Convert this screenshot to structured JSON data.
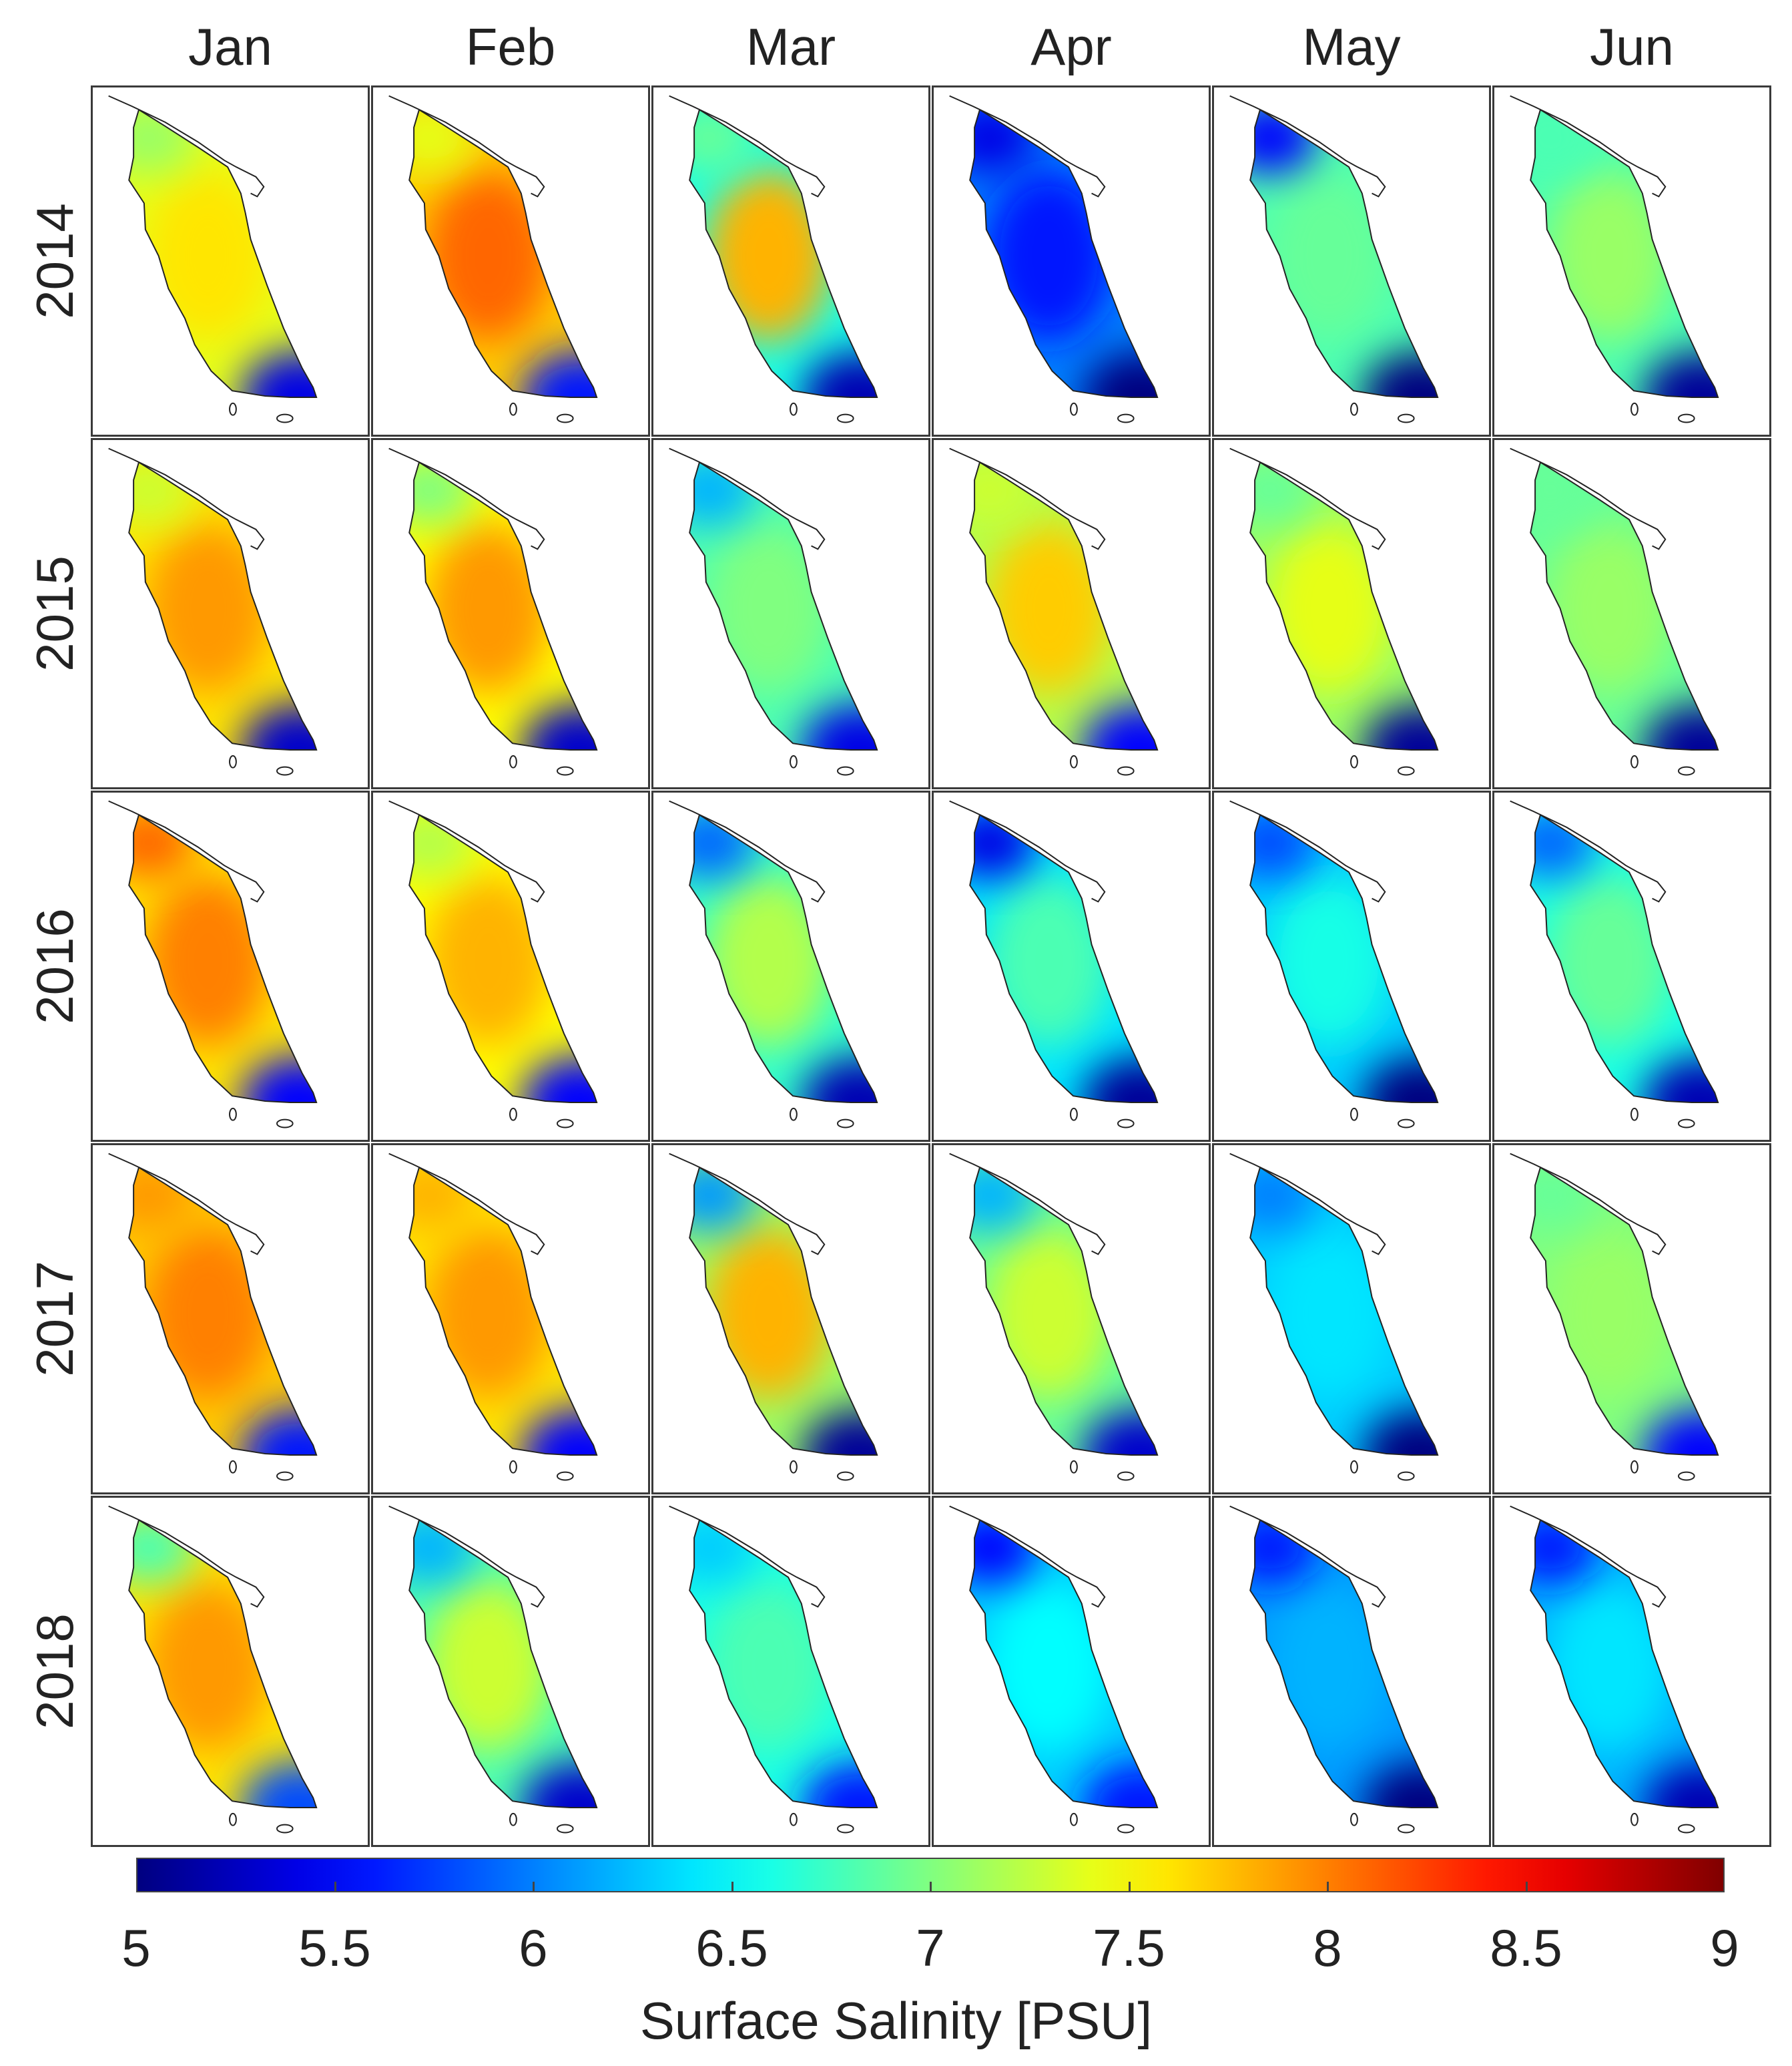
{
  "chart_data": {
    "type": "heatmap",
    "title": "",
    "columns": [
      "Jan",
      "Feb",
      "Mar",
      "Apr",
      "May",
      "Jun"
    ],
    "rows": [
      "2014",
      "2015",
      "2016",
      "2017",
      "2018"
    ],
    "panels": [
      [
        {
          "center": 7.6,
          "north": 7.1,
          "south": 5.4,
          "coast": 7.4
        },
        {
          "center": 8.1,
          "north": 7.4,
          "south": 5.6,
          "coast": 7.7
        },
        {
          "center": 7.8,
          "north": 6.9,
          "south": 5.2,
          "coast": 6.6
        },
        {
          "center": 5.6,
          "north": 5.4,
          "south": 5.0,
          "coast": 6.0
        },
        {
          "center": 6.9,
          "north": 5.5,
          "south": 5.0,
          "coast": 6.8
        },
        {
          "center": 7.1,
          "north": 6.8,
          "south": 5.1,
          "coast": 6.8
        }
      ],
      [
        {
          "center": 7.9,
          "north": 7.3,
          "south": 5.3,
          "coast": 7.6
        },
        {
          "center": 7.9,
          "north": 7.0,
          "south": 5.3,
          "coast": 7.5
        },
        {
          "center": 7.0,
          "north": 6.2,
          "south": 5.4,
          "coast": 6.8
        },
        {
          "center": 7.7,
          "north": 7.3,
          "south": 5.5,
          "coast": 7.2
        },
        {
          "center": 7.4,
          "north": 6.9,
          "south": 5.1,
          "coast": 7.1
        },
        {
          "center": 7.1,
          "north": 6.9,
          "south": 5.1,
          "coast": 6.9
        }
      ],
      [
        {
          "center": 8.0,
          "north": 8.1,
          "south": 5.5,
          "coast": 7.6
        },
        {
          "center": 7.8,
          "north": 7.2,
          "south": 5.5,
          "coast": 7.5
        },
        {
          "center": 7.2,
          "north": 5.9,
          "south": 5.2,
          "coast": 6.7
        },
        {
          "center": 6.8,
          "north": 5.4,
          "south": 5.1,
          "coast": 6.4
        },
        {
          "center": 6.6,
          "north": 5.8,
          "south": 5.0,
          "coast": 6.3
        },
        {
          "center": 6.9,
          "north": 5.9,
          "south": 5.2,
          "coast": 6.6
        }
      ],
      [
        {
          "center": 8.0,
          "north": 7.9,
          "south": 5.6,
          "coast": 7.7
        },
        {
          "center": 7.9,
          "north": 7.8,
          "south": 5.5,
          "coast": 7.6
        },
        {
          "center": 7.8,
          "north": 6.1,
          "south": 5.1,
          "coast": 7.1
        },
        {
          "center": 7.3,
          "north": 6.2,
          "south": 5.3,
          "coast": 6.9
        },
        {
          "center": 6.4,
          "north": 6.0,
          "south": 5.0,
          "coast": 6.3
        },
        {
          "center": 7.1,
          "north": 6.9,
          "south": 5.5,
          "coast": 7.0
        }
      ],
      [
        {
          "center": 7.9,
          "north": 6.8,
          "south": 5.8,
          "coast": 7.6
        },
        {
          "center": 7.3,
          "north": 6.2,
          "south": 5.3,
          "coast": 6.8
        },
        {
          "center": 6.8,
          "north": 6.3,
          "south": 5.6,
          "coast": 6.6
        },
        {
          "center": 6.5,
          "north": 5.5,
          "south": 5.6,
          "coast": 6.3
        },
        {
          "center": 6.2,
          "north": 5.6,
          "south": 5.0,
          "coast": 6.1
        },
        {
          "center": 6.4,
          "north": 5.6,
          "south": 5.2,
          "coast": 6.2
        }
      ]
    ],
    "colorbar": {
      "label": "Surface Salinity [PSU]",
      "range": [
        5,
        9
      ],
      "ticks": [
        "5",
        "5.5",
        "6",
        "6.5",
        "7",
        "7.5",
        "8",
        "8.5",
        "9"
      ],
      "colormap": "jet"
    }
  }
}
